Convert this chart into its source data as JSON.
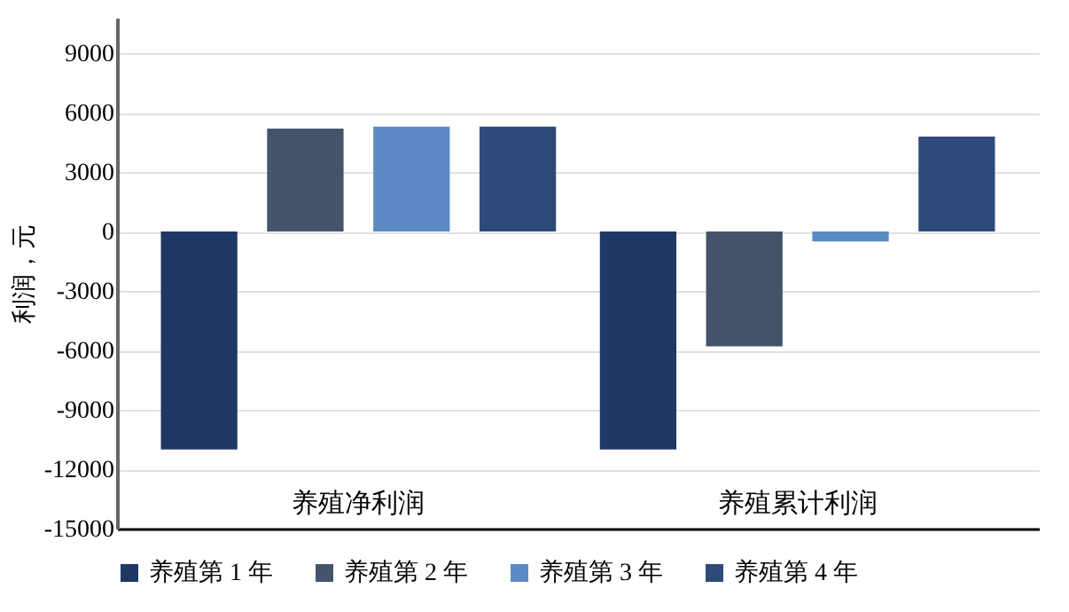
{
  "chart_data": {
    "type": "bar",
    "ylabel": "利润，元",
    "categories": [
      "养殖净利润",
      "养殖累计利润"
    ],
    "series": [
      {
        "name": "养殖第 1 年",
        "color": "#1f3864",
        "values": [
          -11000,
          -11000
        ]
      },
      {
        "name": "养殖第 2 年",
        "color": "#44546a",
        "values": [
          5200,
          -5800
        ]
      },
      {
        "name": "养殖第 3 年",
        "color": "#5b8ac6",
        "values": [
          5300,
          -500
        ]
      },
      {
        "name": "养殖第 4 年",
        "color": "#2e4a7a",
        "values": [
          5300,
          4800
        ]
      }
    ],
    "ylim": [
      -15000,
      10800
    ],
    "yticks": [
      -15000,
      -12000,
      -9000,
      -6000,
      -3000,
      0,
      3000,
      6000,
      9000
    ],
    "grid": "y",
    "legend": "bottom"
  }
}
